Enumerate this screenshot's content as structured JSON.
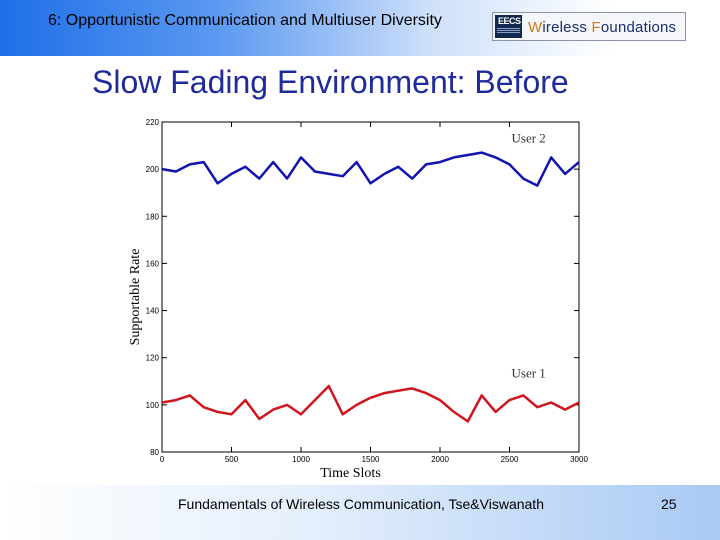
{
  "header": {
    "title": "6: Opportunistic Communication and Multiuser Diversity",
    "logo_eecs": "EECS",
    "logo_text_w": "W",
    "logo_text_mid": "ireless ",
    "logo_text_f": "F",
    "logo_text_end": "oundations"
  },
  "slide": {
    "title": "Slow Fading Environment: Before"
  },
  "footer": {
    "text": "Fundamentals of Wireless Communication, Tse&Viswanath",
    "page_number": "25"
  },
  "colors": {
    "user1": "#d0151d",
    "user2": "#1313b0",
    "title": "#1f2a9c"
  },
  "chart_data": {
    "type": "line",
    "xlabel": "Time Slots",
    "ylabel": "Supportable Rate",
    "xlim": [
      0,
      3000
    ],
    "ylim": [
      80,
      220
    ],
    "xticks": [
      0,
      500,
      1000,
      1500,
      2000,
      2500,
      3000
    ],
    "yticks": [
      80,
      100,
      120,
      140,
      160,
      180,
      200,
      220
    ],
    "grid": false,
    "series": [
      {
        "name": "User 2",
        "x": [
          0,
          100,
          200,
          300,
          400,
          500,
          600,
          700,
          800,
          900,
          1000,
          1100,
          1200,
          1300,
          1400,
          1500,
          1600,
          1700,
          1800,
          1900,
          2000,
          2100,
          2200,
          2300,
          2400,
          2500,
          2600,
          2700,
          2800,
          2900,
          3000
        ],
        "values": [
          200,
          199,
          202,
          203,
          194,
          198,
          201,
          196,
          203,
          196,
          205,
          199,
          198,
          197,
          203,
          194,
          198,
          201,
          196,
          202,
          203,
          205,
          206,
          207,
          205,
          202,
          196,
          193,
          205,
          198,
          203
        ]
      },
      {
        "name": "User 1",
        "x": [
          0,
          100,
          200,
          300,
          400,
          500,
          600,
          700,
          800,
          900,
          1000,
          1100,
          1200,
          1300,
          1400,
          1500,
          1600,
          1700,
          1800,
          1900,
          2000,
          2100,
          2200,
          2300,
          2400,
          2500,
          2600,
          2700,
          2800,
          2900,
          3000
        ],
        "values": [
          101,
          102,
          104,
          99,
          97,
          96,
          102,
          94,
          98,
          100,
          96,
          102,
          108,
          96,
          100,
          103,
          105,
          106,
          107,
          105,
          102,
          97,
          93,
          104,
          97,
          102,
          104,
          99,
          101,
          98,
          101
        ]
      }
    ]
  }
}
